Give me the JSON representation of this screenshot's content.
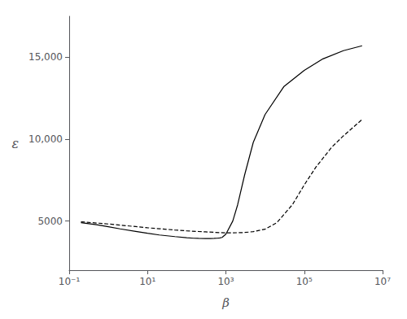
{
  "chart_data": {
    "type": "line",
    "xlabel": "β",
    "ylabel": "ε",
    "log": "x",
    "grid": false,
    "xlim": [
      0.1,
      10000000
    ],
    "ylim": [
      2000,
      17500
    ],
    "xticks": [
      {
        "value": 0.1,
        "label": "10⁻¹"
      },
      {
        "value": 10,
        "label": "10¹"
      },
      {
        "value": 1000,
        "label": "10³"
      },
      {
        "value": 100000,
        "label": "10⁵"
      },
      {
        "value": 10000000,
        "label": "10⁷"
      }
    ],
    "yticks": [
      5000,
      {
        "value": 10000,
        "label": "10,000"
      },
      {
        "value": 15000,
        "label": "15,000"
      }
    ],
    "series": [
      {
        "color": "#000000",
        "line_style": "solid",
        "x": [
          0.2,
          0.5,
          1.0,
          2.0,
          5.0,
          10.0,
          20.0,
          50.0,
          100.0,
          150.0,
          200.0,
          300.0,
          400.0,
          500.0,
          600.0,
          700.0,
          800.0,
          1000.0,
          1500.0,
          2000.0,
          3000.0,
          5000.0,
          10000.0,
          30000.0,
          100000.0,
          300000.0,
          1000000.0,
          3000000.0
        ],
        "values": [
          4900,
          4780,
          4650,
          4520,
          4370,
          4250,
          4150,
          4050,
          3980,
          3950,
          3940,
          3930,
          3930,
          3940,
          3950,
          3970,
          4000,
          4200,
          5000,
          6000,
          7800,
          9800,
          11500,
          13200,
          14200,
          14900,
          15400,
          15700
        ]
      },
      {
        "color": "#000000",
        "line_style": "dashed",
        "x": [
          0.2,
          0.5,
          1.0,
          2.0,
          5.0,
          10.0,
          20.0,
          50.0,
          100.0,
          200.0,
          300.0,
          500.0,
          700.0,
          1000.0,
          1500.0,
          2000.0,
          3000.0,
          5000.0,
          10000.0,
          20000.0,
          50000.0,
          100000.0,
          200000.0,
          500000.0,
          1000000.0,
          3000000.0
        ],
        "values": [
          4950,
          4880,
          4820,
          4750,
          4660,
          4590,
          4530,
          4450,
          4400,
          4360,
          4340,
          4310,
          4290,
          4280,
          4280,
          4285,
          4300,
          4350,
          4500,
          4900,
          6000,
          7200,
          8300,
          9500,
          10200,
          11200
        ]
      }
    ]
  }
}
